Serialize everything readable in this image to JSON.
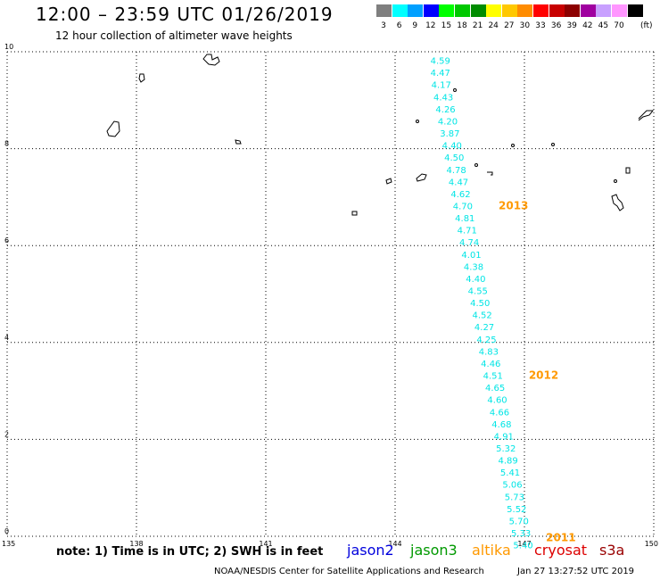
{
  "header": {
    "title": "12:00 – 23:59 UTC 01/26/2019",
    "subtitle": "12 hour collection of altimeter wave heights"
  },
  "legend": {
    "unit": "(ft)",
    "bins": [
      {
        "label": "3",
        "color": "#7f7f7f"
      },
      {
        "label": "6",
        "color": "#00ffff"
      },
      {
        "label": "9",
        "color": "#00a0ff"
      },
      {
        "label": "12",
        "color": "#0000ff"
      },
      {
        "label": "15",
        "color": "#00ff00"
      },
      {
        "label": "18",
        "color": "#00c800"
      },
      {
        "label": "21",
        "color": "#008c00"
      },
      {
        "label": "24",
        "color": "#ffff00"
      },
      {
        "label": "27",
        "color": "#ffc800"
      },
      {
        "label": "30",
        "color": "#ff8c00"
      },
      {
        "label": "33",
        "color": "#ff0000"
      },
      {
        "label": "36",
        "color": "#c80000"
      },
      {
        "label": "39",
        "color": "#8c0000"
      },
      {
        "label": "42",
        "color": "#a000a0"
      },
      {
        "label": "45",
        "color": "#c8a0ff"
      },
      {
        "label": "70",
        "color": "#ff96ff"
      },
      {
        "label": "",
        "color": "#000000"
      }
    ]
  },
  "map": {
    "lon_range": [
      135,
      150
    ],
    "lat_range": [
      0,
      10
    ],
    "lon_ticks": [
      "135",
      "138",
      "141",
      "144",
      "147",
      "150"
    ],
    "lat_ticks": [
      "0",
      "2",
      "4",
      "6",
      "8",
      "10"
    ],
    "track_color": "#00e5e5",
    "year_color": "#ff9900",
    "track": [
      {
        "lon": 145.05,
        "lat": 9.75,
        "value": "4.59"
      },
      {
        "lon": 145.05,
        "lat": 9.5,
        "value": "4.47"
      },
      {
        "lon": 145.07,
        "lat": 9.25,
        "value": "4.17"
      },
      {
        "lon": 145.12,
        "lat": 9.0,
        "value": "4.43"
      },
      {
        "lon": 145.17,
        "lat": 8.75,
        "value": "4.26"
      },
      {
        "lon": 145.22,
        "lat": 8.5,
        "value": "4.20"
      },
      {
        "lon": 145.27,
        "lat": 8.25,
        "value": "3.87"
      },
      {
        "lon": 145.32,
        "lat": 8.0,
        "value": "4.40"
      },
      {
        "lon": 145.37,
        "lat": 7.75,
        "value": "4.50"
      },
      {
        "lon": 145.42,
        "lat": 7.5,
        "value": "4.78"
      },
      {
        "lon": 145.47,
        "lat": 7.25,
        "value": "4.47"
      },
      {
        "lon": 145.52,
        "lat": 7.0,
        "value": "4.62"
      },
      {
        "lon": 145.57,
        "lat": 6.75,
        "value": "4.70"
      },
      {
        "lon": 145.62,
        "lat": 6.5,
        "value": "4.81"
      },
      {
        "lon": 145.67,
        "lat": 6.25,
        "value": "4.71"
      },
      {
        "lon": 145.72,
        "lat": 6.0,
        "value": "4.74"
      },
      {
        "lon": 145.77,
        "lat": 5.75,
        "value": "4.01"
      },
      {
        "lon": 145.82,
        "lat": 5.5,
        "value": "4.38"
      },
      {
        "lon": 145.87,
        "lat": 5.25,
        "value": "4.40"
      },
      {
        "lon": 145.92,
        "lat": 5.0,
        "value": "4.55"
      },
      {
        "lon": 145.97,
        "lat": 4.75,
        "value": "4.50"
      },
      {
        "lon": 146.02,
        "lat": 4.5,
        "value": "4.52"
      },
      {
        "lon": 146.07,
        "lat": 4.25,
        "value": "4.27"
      },
      {
        "lon": 146.12,
        "lat": 4.0,
        "value": "4.25"
      },
      {
        "lon": 146.17,
        "lat": 3.75,
        "value": "4.83"
      },
      {
        "lon": 146.22,
        "lat": 3.5,
        "value": "4.46"
      },
      {
        "lon": 146.27,
        "lat": 3.25,
        "value": "4.51"
      },
      {
        "lon": 146.32,
        "lat": 3.0,
        "value": "4.65"
      },
      {
        "lon": 146.37,
        "lat": 2.75,
        "value": "4.60"
      },
      {
        "lon": 146.42,
        "lat": 2.5,
        "value": "4.66"
      },
      {
        "lon": 146.47,
        "lat": 2.25,
        "value": "4.68"
      },
      {
        "lon": 146.52,
        "lat": 2.0,
        "value": "4.91"
      },
      {
        "lon": 146.57,
        "lat": 1.75,
        "value": "5.32"
      },
      {
        "lon": 146.62,
        "lat": 1.5,
        "value": "4.89"
      },
      {
        "lon": 146.67,
        "lat": 1.25,
        "value": "5.41"
      },
      {
        "lon": 146.72,
        "lat": 1.0,
        "value": "5.06"
      },
      {
        "lon": 146.77,
        "lat": 0.75,
        "value": "5.73"
      },
      {
        "lon": 146.82,
        "lat": 0.5,
        "value": "5.52"
      },
      {
        "lon": 146.87,
        "lat": 0.25,
        "value": "5.70"
      },
      {
        "lon": 146.92,
        "lat": 0.0,
        "value": "5.33"
      },
      {
        "lon": 146.97,
        "lat": -0.25,
        "value": "5.40"
      }
    ],
    "year_labels": [
      {
        "lon": 146.4,
        "lat": 6.75,
        "text": "2013"
      },
      {
        "lon": 147.1,
        "lat": 3.25,
        "text": "2012"
      },
      {
        "lon": 147.5,
        "lat": -0.1,
        "text": "2011"
      }
    ]
  },
  "footer": {
    "note": "note:  1) Time is in UTC;  2) SWH is in feet",
    "satellites": [
      {
        "name": "jason2",
        "color": "#0000dd"
      },
      {
        "name": "jason3",
        "color": "#009900"
      },
      {
        "name": "altika",
        "color": "#ff9900"
      },
      {
        "name": "cryosat",
        "color": "#dd0000"
      },
      {
        "name": "s3a",
        "color": "#990000"
      }
    ],
    "credit": "NOAA/NESDIS Center for Satellite Applications and Research",
    "timestamp": "Jan 27 13:27:52 UTC 2019"
  }
}
